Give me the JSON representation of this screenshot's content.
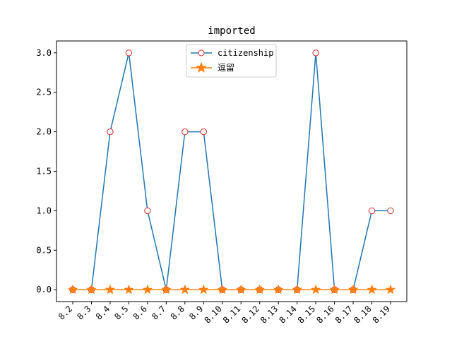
{
  "chart_data": {
    "type": "line",
    "title": "imported",
    "xlabel": "",
    "ylabel": "",
    "categories": [
      "8.2",
      "8.3",
      "8.4",
      "8.5",
      "8.6",
      "8.7",
      "8.8",
      "8.9",
      "8.10",
      "8.11",
      "8.12",
      "8.13",
      "8.14",
      "8.15",
      "8.16",
      "8.17",
      "8.18",
      "8.19"
    ],
    "ylim": [
      -0.15,
      3.15
    ],
    "yticks": [
      "0.0",
      "0.5",
      "1.0",
      "1.5",
      "2.0",
      "2.5",
      "3.0"
    ],
    "grid": false,
    "legend_position": "top-center",
    "series": [
      {
        "name": "citizenship",
        "color": "#1f77b4",
        "marker": "circle-open",
        "marker_edge_color": "#d62728",
        "values": [
          0,
          0,
          2,
          3,
          1,
          0,
          2,
          2,
          0,
          0,
          0,
          0,
          0,
          3,
          0,
          0,
          1,
          1
        ]
      },
      {
        "name": "逗留",
        "color": "#ff7f0e",
        "marker": "star",
        "values": [
          0,
          0,
          0,
          0,
          0,
          0,
          0,
          0,
          0,
          0,
          0,
          0,
          0,
          0,
          0,
          0,
          0,
          0
        ]
      }
    ]
  }
}
